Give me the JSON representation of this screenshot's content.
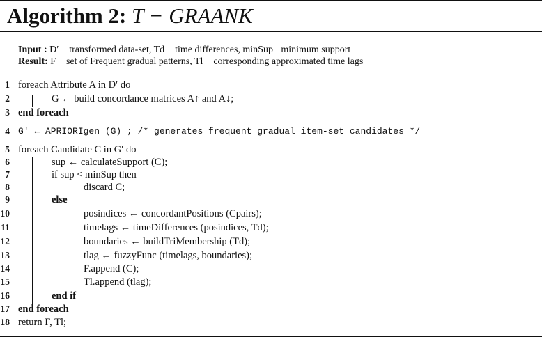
{
  "header": {
    "label": "Algorithm 2:",
    "name": "T − GRAANK"
  },
  "io": {
    "input_label": "Input :",
    "input_text": "D′ − transformed data-set, Td − time differences, minSup− minimum support",
    "result_label": "Result:",
    "result_text": "F − set of Frequent gradual patterns, Tl − corresponding approximated time lags"
  },
  "lines": [
    {
      "no": "1",
      "text": "foreach Attribute A in D′ do"
    },
    {
      "no": "2",
      "text": "G ← build concordance matrices A↑ and A↓;"
    },
    {
      "no": "3",
      "text": "end foreach"
    },
    {
      "no": "4",
      "text": "G′ ← APRIORIgen (G) ;   /* generates frequent gradual item-set candidates */"
    },
    {
      "no": "5",
      "text": "foreach Candidate C in G′ do"
    },
    {
      "no": "6",
      "text": "sup ← calculateSupport (C);"
    },
    {
      "no": "7",
      "text": "if sup < minSup then"
    },
    {
      "no": "8",
      "text": "discard C;"
    },
    {
      "no": "9",
      "text": "else"
    },
    {
      "no": "10",
      "text": "posindices ← concordantPositions (Cpairs);"
    },
    {
      "no": "11",
      "text": "timelags ← timeDifferences (posindices, Td);"
    },
    {
      "no": "12",
      "text": "boundaries ← buildTriMembership (Td);"
    },
    {
      "no": "13",
      "text": "tlag ← fuzzyFunc (timelags, boundaries);"
    },
    {
      "no": "14",
      "text": "F.append (C);"
    },
    {
      "no": "15",
      "text": "Tl.append (tlag);"
    },
    {
      "no": "16",
      "text": "end if"
    },
    {
      "no": "17",
      "text": "end foreach"
    },
    {
      "no": "18",
      "text": "return F, Tl;"
    }
  ]
}
